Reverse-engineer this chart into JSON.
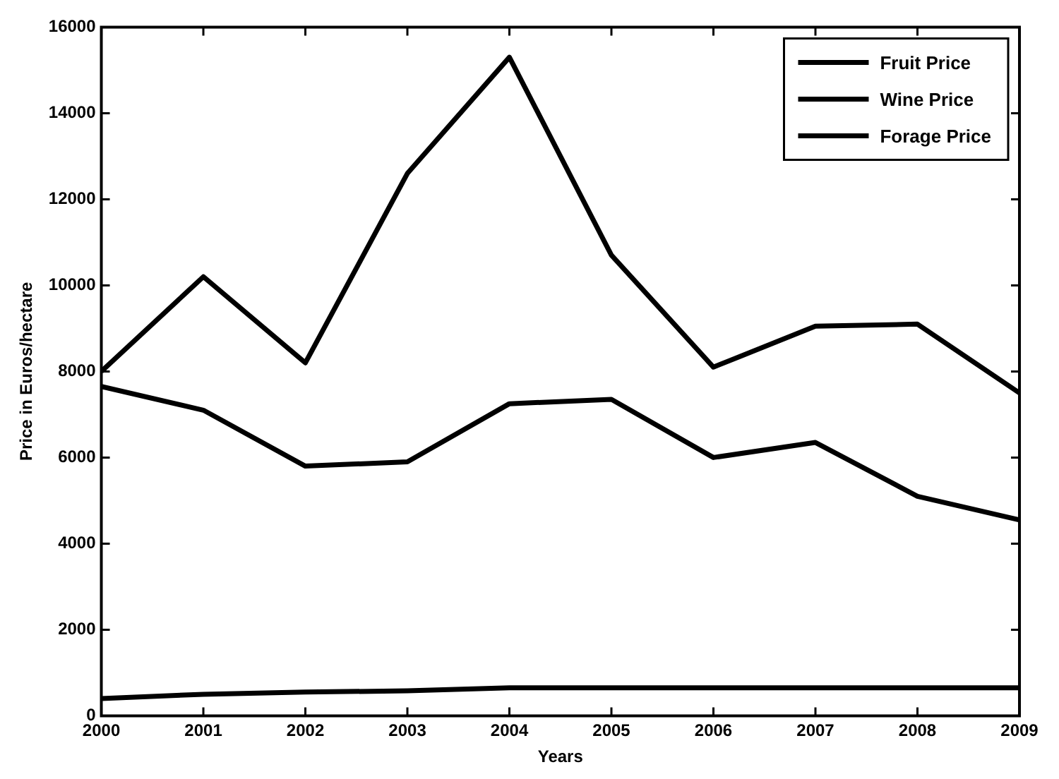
{
  "chart_data": {
    "type": "line",
    "xlabel": "Years",
    "ylabel": "Price in Euros/hectare",
    "x": [
      2000,
      2001,
      2002,
      2003,
      2004,
      2005,
      2006,
      2007,
      2008,
      2009
    ],
    "xlim": [
      2000,
      2009
    ],
    "xticks": [
      2000,
      2001,
      2002,
      2003,
      2004,
      2005,
      2006,
      2007,
      2008,
      2009
    ],
    "ylim": [
      0,
      16000
    ],
    "yticks": [
      0,
      2000,
      4000,
      6000,
      8000,
      10000,
      12000,
      14000,
      16000
    ],
    "grid": false,
    "legend": "top right",
    "marker": "none",
    "line_style": "solid",
    "series": [
      {
        "name": "Fruit Price",
        "color": "#000000",
        "values": [
          8000,
          10200,
          8200,
          12600,
          15300,
          10700,
          8100,
          9050,
          9100,
          7500
        ]
      },
      {
        "name": "Wine Price",
        "color": "#000000",
        "values": [
          7650,
          7100,
          5800,
          5900,
          7250,
          7350,
          6000,
          6350,
          5100,
          4550
        ]
      },
      {
        "name": "Forage Price",
        "color": "#000000",
        "values": [
          400,
          500,
          550,
          580,
          650,
          650,
          650,
          650,
          650,
          650
        ]
      }
    ]
  }
}
